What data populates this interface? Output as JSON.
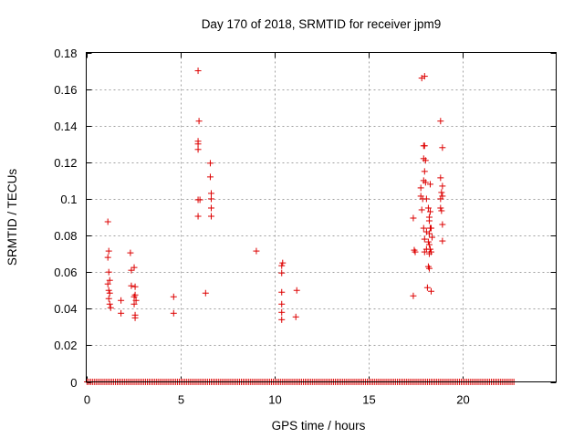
{
  "chart_data": {
    "type": "scatter",
    "title": "Day 170 of 2018, SRMTID for receiver jpm9",
    "xlabel": "GPS time / hours",
    "ylabel": "SRMTID / TECUs",
    "xlim": [
      0,
      25
    ],
    "ylim": [
      0,
      0.18
    ],
    "x_ticks": [
      0,
      5,
      10,
      15,
      20
    ],
    "x_tick_labels": [
      "0",
      "5",
      "10",
      "15",
      "20"
    ],
    "y_ticks": [
      0,
      0.02,
      0.04,
      0.06,
      0.08,
      0.1,
      0.12,
      0.14,
      0.16,
      0.18
    ],
    "y_tick_labels": [
      "0",
      "0.02",
      "0.04",
      "0.06",
      "0.08",
      "0.1",
      "0.12",
      "0.14",
      "0.16",
      "0.18"
    ],
    "grid": true,
    "marker": "+",
    "marker_color": "#dd0000",
    "baseline_zero_range": [
      0.05,
      22.8
    ],
    "baseline_zero_step": 0.1,
    "series": [
      {
        "name": "SRMTID",
        "points": [
          [
            1.15,
            0.0875
          ],
          [
            1.2,
            0.0715
          ],
          [
            1.15,
            0.068
          ],
          [
            1.2,
            0.06
          ],
          [
            1.25,
            0.0555
          ],
          [
            1.15,
            0.0535
          ],
          [
            1.2,
            0.05
          ],
          [
            1.25,
            0.0485
          ],
          [
            1.2,
            0.0455
          ],
          [
            1.25,
            0.0425
          ],
          [
            1.3,
            0.0405
          ],
          [
            1.85,
            0.0445
          ],
          [
            1.85,
            0.0375
          ],
          [
            2.35,
            0.0705
          ],
          [
            2.4,
            0.061
          ],
          [
            2.55,
            0.0625
          ],
          [
            2.4,
            0.0525
          ],
          [
            2.6,
            0.052
          ],
          [
            2.6,
            0.0475
          ],
          [
            2.55,
            0.0465
          ],
          [
            2.65,
            0.0445
          ],
          [
            2.55,
            0.0425
          ],
          [
            2.6,
            0.0365
          ],
          [
            2.6,
            0.035
          ],
          [
            4.65,
            0.0465
          ],
          [
            4.65,
            0.0375
          ],
          [
            5.95,
            0.17
          ],
          [
            6.0,
            0.1425
          ],
          [
            5.95,
            0.1315
          ],
          [
            5.95,
            0.13
          ],
          [
            5.95,
            0.127
          ],
          [
            5.95,
            0.0995
          ],
          [
            6.05,
            0.0995
          ],
          [
            5.95,
            0.0905
          ],
          [
            6.35,
            0.0485
          ],
          [
            6.6,
            0.1195
          ],
          [
            6.6,
            0.112
          ],
          [
            6.65,
            0.103
          ],
          [
            6.65,
            0.1
          ],
          [
            6.65,
            0.095
          ],
          [
            6.65,
            0.0905
          ],
          [
            9.05,
            0.0715
          ],
          [
            10.45,
            0.065
          ],
          [
            10.4,
            0.0635
          ],
          [
            10.4,
            0.0595
          ],
          [
            10.4,
            0.049
          ],
          [
            10.4,
            0.0425
          ],
          [
            10.4,
            0.038
          ],
          [
            10.4,
            0.034
          ],
          [
            11.2,
            0.05
          ],
          [
            11.15,
            0.0355
          ],
          [
            17.4,
            0.0895
          ],
          [
            17.45,
            0.072
          ],
          [
            17.5,
            0.071
          ],
          [
            17.4,
            0.047
          ],
          [
            17.85,
            0.166
          ],
          [
            18.0,
            0.167
          ],
          [
            17.95,
            0.129
          ],
          [
            18.0,
            0.129
          ],
          [
            17.95,
            0.122
          ],
          [
            18.05,
            0.121
          ],
          [
            18.0,
            0.115
          ],
          [
            17.95,
            0.11
          ],
          [
            17.8,
            0.106
          ],
          [
            18.05,
            0.109
          ],
          [
            17.8,
            0.1015
          ],
          [
            17.9,
            0.1
          ],
          [
            18.1,
            0.1
          ],
          [
            17.85,
            0.094
          ],
          [
            18.2,
            0.095
          ],
          [
            18.3,
            0.108
          ],
          [
            18.3,
            0.093
          ],
          [
            18.25,
            0.09
          ],
          [
            18.25,
            0.088
          ],
          [
            18.3,
            0.084
          ],
          [
            17.95,
            0.084
          ],
          [
            18.1,
            0.082
          ],
          [
            18.25,
            0.081
          ],
          [
            18.35,
            0.084
          ],
          [
            18.4,
            0.079
          ],
          [
            18.0,
            0.078
          ],
          [
            18.2,
            0.0765
          ],
          [
            18.25,
            0.075
          ],
          [
            18.3,
            0.0725
          ],
          [
            18.35,
            0.071
          ],
          [
            18.1,
            0.0725
          ],
          [
            18.0,
            0.071
          ],
          [
            18.25,
            0.07
          ],
          [
            18.2,
            0.063
          ],
          [
            18.25,
            0.062
          ],
          [
            18.15,
            0.0515
          ],
          [
            18.35,
            0.0495
          ],
          [
            18.85,
            0.1425
          ],
          [
            18.95,
            0.128
          ],
          [
            18.85,
            0.1115
          ],
          [
            18.95,
            0.107
          ],
          [
            18.9,
            0.1035
          ],
          [
            18.95,
            0.1015
          ],
          [
            18.85,
            0.1
          ],
          [
            18.85,
            0.095
          ],
          [
            18.9,
            0.0935
          ],
          [
            18.95,
            0.086
          ],
          [
            18.95,
            0.077
          ]
        ]
      }
    ]
  }
}
